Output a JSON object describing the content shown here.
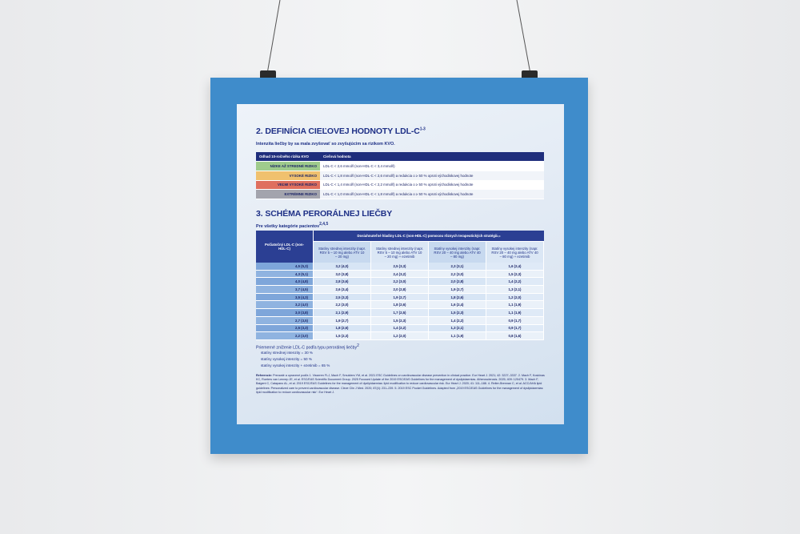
{
  "section1": {
    "title": "2. DEFINÍCIA CIEĽOVEJ HODNOTY LDL-C",
    "title_sup": "1-3",
    "subtitle": "Intenzita liečby by sa mala zvyšovať so zvyšujúcim sa rizikom KVO.",
    "table": {
      "header": [
        "Odhad 10-ročného rizika KVO",
        "Cieľová hodnota"
      ],
      "rows": [
        [
          "NÍZKE AŽ STREDNÉ RIZIKO",
          "LDL-C < 2,6 mmol/l (non-HDL-C < 3,4 mmol/l)"
        ],
        [
          "VYSOKÉ RIZIKO",
          "LDL-C < 1,8 mmol/l (non-HDL-C < 2,6 mmol/l) a redukcia o ≥ 50 % oproti východiskovej hodnote"
        ],
        [
          "VEĽMI VYSOKÉ RIZIKO",
          "LDL-C < 1,4 mmol/l (non-HDL-C < 2,2 mmol/l) a redukcia o ≥ 50 % oproti východiskovej hodnote"
        ],
        [
          "EXTRÉMNE RIZIKO",
          "LDL-C < 1,0 mmol/l (non-HDL-C < 1,8 mmol/l) a redukcia o ≥ 50 % oproti východiskovej hodnote"
        ]
      ]
    }
  },
  "section2": {
    "title": "3. SCHÉMA PERORÁLNEJ LIEČBY",
    "subtitle": "Pre všetky kategórie pacientov",
    "subtitle_sup": "2,4,5",
    "table": {
      "first_header": "Počiatočný LDL-C (non-HDL-C)",
      "group_header": "Dosiahnuteľné hladiny LDL-C (non-HDL-C) pomocou rôznych terapeutických stratégií",
      "group_header_sup": "2,4",
      "columns": [
        "Statíny strednej intenzity (napr. RSV 5 – 10 mg alebo ATV 10 – 20 mg)",
        "Statíny strednej intenzity (napr. RSV 5 – 10 mg alebo ATV 10 – 20 mg) + ezetimib",
        "Statíny vysokej intenzity (napr. RSV 20 – 40 mg alebo ATV 40 – 80 mg)",
        "Statíny vysokej intenzity (napr. RSV 20 – 40 mg alebo ATV 40 – 80 mg) + ezetimib"
      ],
      "rows": [
        [
          "4,5 (5,3)",
          "3,2 (4,0)",
          "2,5 (3,3)",
          "2,3 (3,1)",
          "1,6 (2,4)"
        ],
        [
          "4,3 (5,1)",
          "3,0 (3,8)",
          "2,4 (3,2)",
          "2,2 (3,0)",
          "1,5 (2,3)"
        ],
        [
          "4,0 (4,8)",
          "2,8 (3,6)",
          "2,2 (3,0)",
          "2,0 (2,8)",
          "1,4 (2,2)"
        ],
        [
          "3,7 (4,5)",
          "2,6 (3,4)",
          "2,0 (2,8)",
          "1,9 (2,7)",
          "1,3 (2,1)"
        ],
        [
          "3,5 (4,3)",
          "2,5 (3,3)",
          "1,9 (2,7)",
          "1,8 (2,6)",
          "1,2 (2,0)"
        ],
        [
          "3,2 (4,0)",
          "2,2 (3,0)",
          "1,8 (2,6)",
          "1,6 (2,4)",
          "1,1 (1,9)"
        ],
        [
          "3,0 (3,8)",
          "2,1 (2,9)",
          "1,7 (2,5)",
          "1,5 (2,3)",
          "1,1 (1,9)"
        ],
        [
          "2,7 (3,5)",
          "1,9 (2,7)",
          "1,5 (2,3)",
          "1,4 (2,2)",
          "0,9 (1,7)"
        ],
        [
          "2,5 (3,3)",
          "1,8 (2,6)",
          "1,4 (2,2)",
          "1,3 (2,1)",
          "0,9 (1,7)"
        ],
        [
          "2,2 (3,0)",
          "1,5 (2,3)",
          "1,2 (2,0)",
          "1,1 (1,9)",
          "0,8 (1,6)"
        ]
      ]
    }
  },
  "summary": {
    "title": "Priemerné zníženie LDL-C podľa typu perorálnej liečby",
    "title_sup": "2",
    "items": [
      "statíny strednej intenzity = 30 %",
      "statíny vysokej intenzity = 50 %",
      "statíny vysokej intenzity + ezetimib = 65 %"
    ]
  },
  "references": {
    "label": "Referencie:",
    "text": "Prevzaté a upravené podľa 1. Visseren FLJ, Mach F, Smulders YM, et al. 2021 ESC Guidelines on cardiovascular disease prevention in clinical practice. Eur Heart J. 2021; 42: 3227–3337. 2. Mach F, Koskinas KC, Roeters van Lennep JE, et al. ESC/EAS Scientific Document Group. 2025 Focused Update of the 2019 ESC/EAS Guidelines for the management of dyslipidaemias. Atherosclerosis. 2025; 409: 120479. 3. Mach F, Baigent C, Catapano AL, et al. 2019 ESC/EAS Guidelines for the management of dyslipidaemias: lipid modification to reduce cardiovascular risk. Eur Heart J. 2020; 41: 111–188. 4. Reiter-Brennan C, et al. ACC/AHA lipid guidelines: Personalized care to prevent cardiovascular disease. Cleve Clin J Med. 2020; 87(4): 231–239. 5. 2019 ESC Pocket Guidelines. Adapted from „2019 ESC/EAS Guidelines for the management of dyslipidaemias: lipid modification to reduce cardiovascular risk“. Eur Heart J."
  }
}
